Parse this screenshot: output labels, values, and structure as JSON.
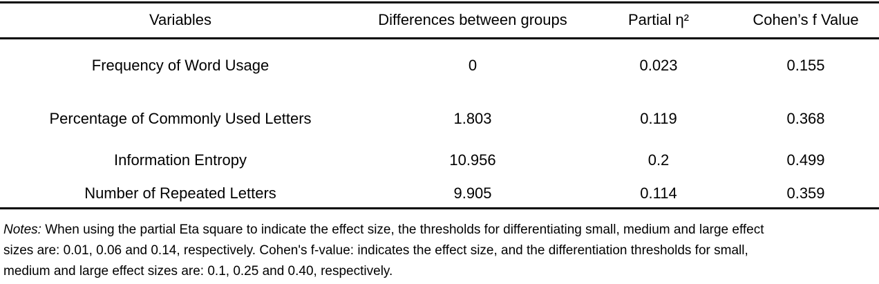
{
  "table": {
    "headers": [
      "Variables",
      "Differences between groups",
      "Partial η²",
      "Cohen’s f Value"
    ],
    "rows": [
      [
        "Frequency of Word Usage",
        "0",
        "0.023",
        "0.155"
      ],
      [
        "Percentage of Commonly Used Letters",
        "1.803",
        "0.119",
        "0.368"
      ],
      [
        "Information Entropy",
        "10.956",
        "0.2",
        "0.499"
      ],
      [
        "Number of Repeated Letters",
        "9.905",
        "0.114",
        "0.359"
      ]
    ]
  },
  "notes": {
    "label": "Notes:",
    "lines": [
      " When using the partial Eta square to indicate the effect size, the thresholds for differentiating small, medium and large effect",
      "sizes are: 0.01, 0.06 and 0.14, respectively.  Cohen's f-value: indicates the effect size, and the differentiation thresholds for small,",
      "medium and large effect sizes are: 0.1, 0.25 and 0.40, respectively."
    ]
  }
}
